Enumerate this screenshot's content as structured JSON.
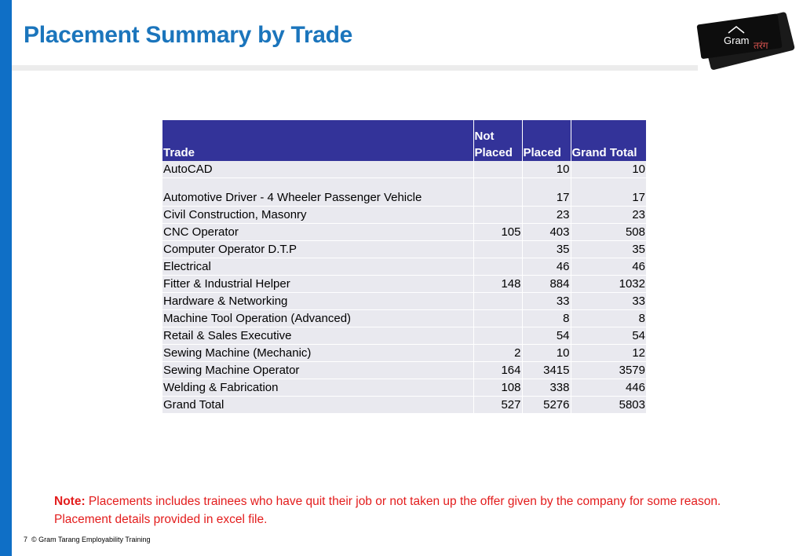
{
  "title": "Placement Summary by Trade",
  "logo": {
    "text_main": "Gram",
    "text_script": "तरंग"
  },
  "table": {
    "headers": {
      "trade": "Trade",
      "not_placed": "Not Placed",
      "placed": "Placed",
      "grand_total": "Grand Total"
    },
    "rows": [
      {
        "trade": "AutoCAD",
        "not_placed": "",
        "placed": "10",
        "total": "10"
      },
      {
        "trade": "Automotive Driver - 4 Wheeler Passenger Vehicle",
        "not_placed": "",
        "placed": "17",
        "total": "17"
      },
      {
        "trade": "Civil Construction, Masonry",
        "not_placed": "",
        "placed": "23",
        "total": "23"
      },
      {
        "trade": "CNC Operator",
        "not_placed": "105",
        "placed": "403",
        "total": "508"
      },
      {
        "trade": "Computer Operator D.T.P",
        "not_placed": "",
        "placed": "35",
        "total": "35"
      },
      {
        "trade": "Electrical",
        "not_placed": "",
        "placed": "46",
        "total": "46"
      },
      {
        "trade": "Fitter & Industrial Helper",
        "not_placed": "148",
        "placed": "884",
        "total": "1032"
      },
      {
        "trade": "Hardware & Networking",
        "not_placed": "",
        "placed": "33",
        "total": "33"
      },
      {
        "trade": "Machine Tool Operation (Advanced)",
        "not_placed": "",
        "placed": "8",
        "total": "8"
      },
      {
        "trade": "Retail & Sales Executive",
        "not_placed": "",
        "placed": "54",
        "total": "54"
      },
      {
        "trade": "Sewing Machine (Mechanic)",
        "not_placed": "2",
        "placed": "10",
        "total": "12"
      },
      {
        "trade": "Sewing Machine Operator",
        "not_placed": "164",
        "placed": "3415",
        "total": "3579"
      },
      {
        "trade": "Welding & Fabrication",
        "not_placed": "108",
        "placed": "338",
        "total": "446"
      },
      {
        "trade": "Grand Total",
        "not_placed": "527",
        "placed": "5276",
        "total": "5803"
      }
    ]
  },
  "note": {
    "label": "Note:",
    "text": "Placements includes trainees who have quit their job or not taken up the offer given by the company for some reason. Placement details provided in excel file."
  },
  "footer": {
    "page_number": "7",
    "text": "© Gram Tarang Employability Training"
  },
  "colors": {
    "accent_blue": "#0f6fc6",
    "title_blue": "#1b75bc",
    "header_bg": "#333399",
    "row_bg": "#e9e9ef",
    "note_red": "#e31c1c"
  }
}
